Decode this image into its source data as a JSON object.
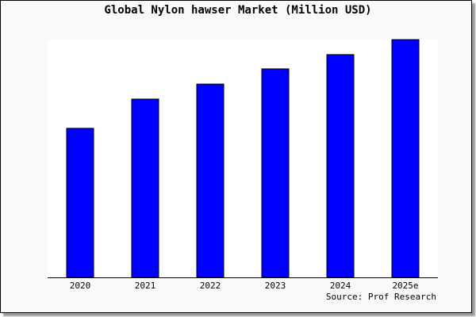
{
  "chart_data": {
    "type": "bar",
    "title": "Global Nylon hawser Market (Million USD)",
    "categories": [
      "2020",
      "2021",
      "2022",
      "2023",
      "2024",
      "2025e"
    ],
    "values": [
      62.7,
      75.0,
      81.3,
      87.7,
      93.7,
      100
    ],
    "value_note_hidden": null,
    "ylim": [
      0,
      100
    ],
    "xlabel": "",
    "ylabel": "",
    "grid": false,
    "bar_color": "#0000ff",
    "source": "Source: Prof Research"
  }
}
